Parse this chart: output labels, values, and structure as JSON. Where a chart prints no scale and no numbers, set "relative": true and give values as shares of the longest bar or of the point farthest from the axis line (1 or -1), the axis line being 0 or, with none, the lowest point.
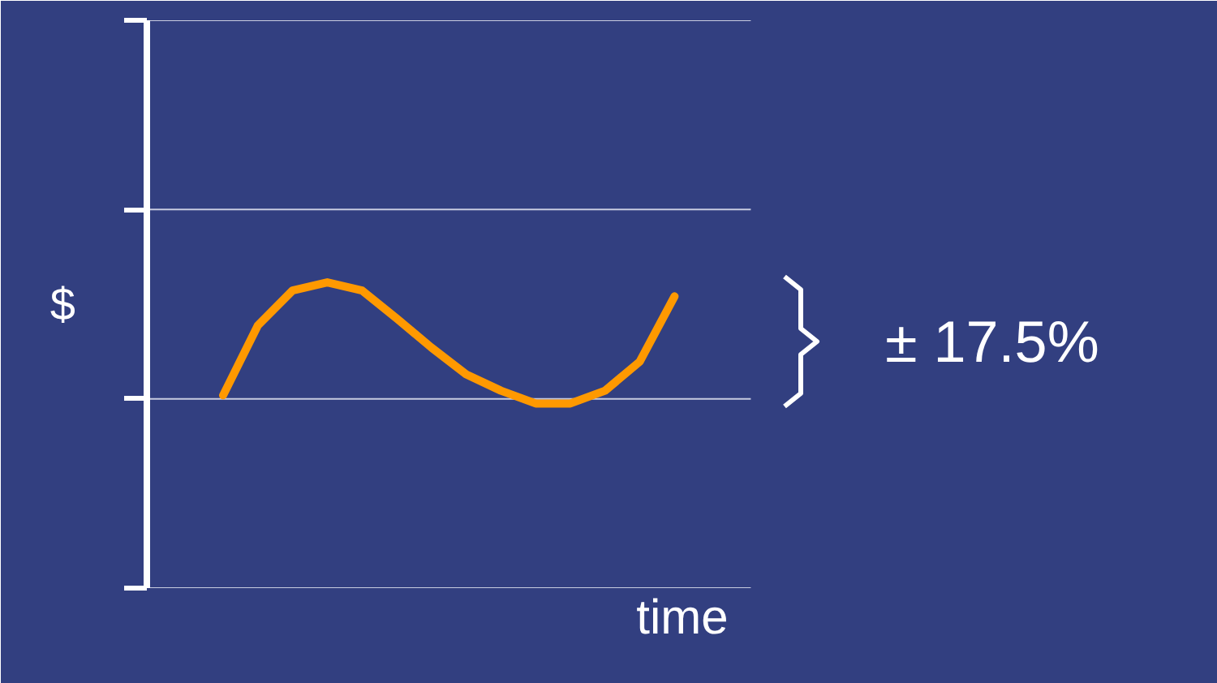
{
  "chart_data": {
    "type": "line",
    "relative": true,
    "xlabel": "time",
    "ylabel": "$",
    "categories": [
      null,
      null,
      null,
      null,
      null,
      null,
      null,
      null,
      null,
      null,
      null,
      null,
      null,
      null
    ],
    "series": [
      {
        "color": "#ff9900",
        "values": [
          0.03,
          0.63,
          0.93,
          1,
          0.93,
          0.69,
          0.44,
          0.21,
          0.07,
          -0.04,
          -0.04,
          0.07,
          0.32,
          0.88
        ]
      }
    ],
    "annotations": [
      "± 17.5%"
    ],
    "line_style": "solid",
    "marker": "none"
  }
}
